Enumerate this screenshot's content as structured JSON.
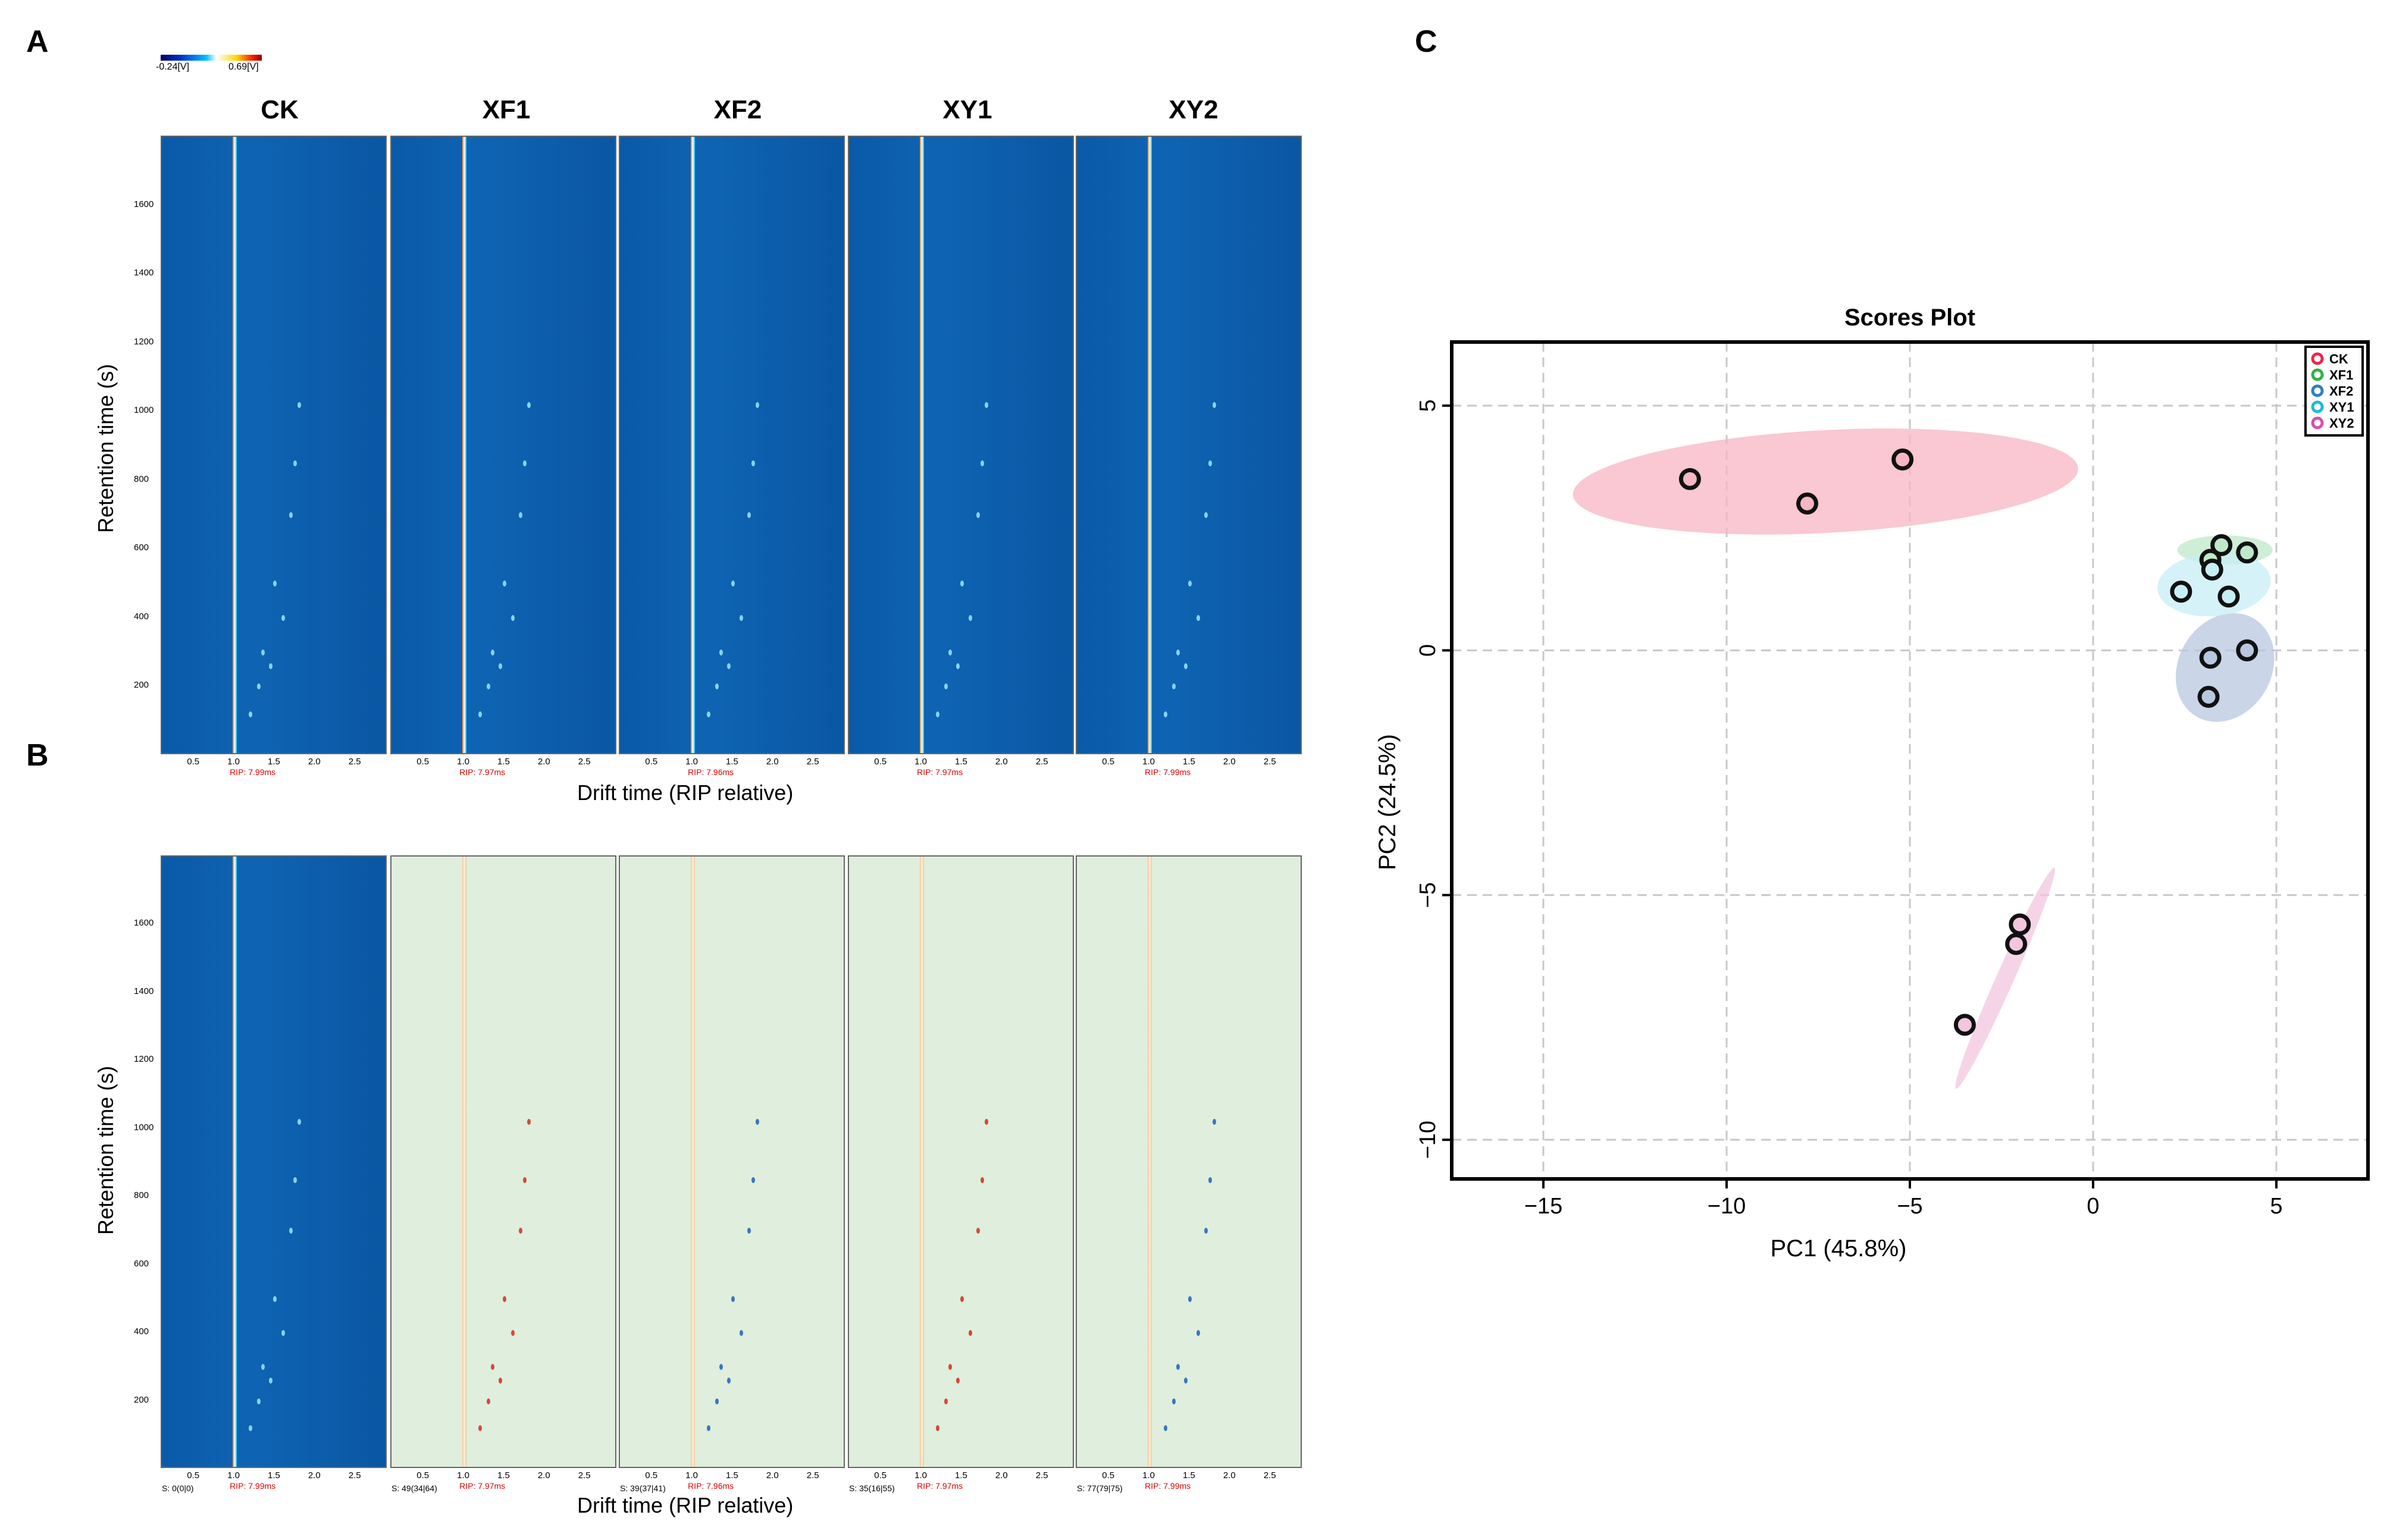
{
  "panel_labels": {
    "a": "A",
    "b": "B",
    "c": "C"
  },
  "colorbar": {
    "min_label": "-0.24[V]",
    "max_label": "0.69[V]"
  },
  "samples": [
    "CK",
    "XF1",
    "XF2",
    "XY1",
    "XY2"
  ],
  "heatmap_axes": {
    "ylabel": "Retention time (s)",
    "xlabel": "Drift time (RIP relative)",
    "y_ticks": [
      "1600",
      "1400",
      "1200",
      "1000",
      "800",
      "600",
      "400",
      "200"
    ],
    "x_ticks": [
      "0.5",
      "1.0",
      "1.5",
      "2.0",
      "2.5"
    ]
  },
  "rip_labels_top": [
    "RIP: 7.99ms",
    "RIP: 7.97ms",
    "RIP: 7.96ms",
    "RIP: 7.97ms",
    "RIP: 7.99ms"
  ],
  "rip_labels_bottom": [
    "RIP: 7.99ms",
    "RIP: 7.97ms",
    "RIP: 7.96ms",
    "RIP: 7.97ms",
    "RIP: 7.99ms"
  ],
  "s_labels": [
    "S: 0(0|0)",
    "S: 49(34|64)",
    "S: 39(37|41)",
    "S: 35(16|55)",
    "S: 77(79|75)"
  ],
  "colors": {
    "CK": "#e8294b",
    "XF1": "#2db34a",
    "XF2": "#2f7fbf",
    "XY1": "#20b8d6",
    "XY2": "#d94ea8"
  },
  "chart_data": [
    {
      "type": "heatmap",
      "title": "",
      "xlabel": "Drift time (RIP relative)",
      "ylabel": "Retention time (s)",
      "samples": [
        "CK",
        "XF1",
        "XF2",
        "XY1",
        "XY2"
      ],
      "x_ticks": [
        0.5,
        1.0,
        1.5,
        2.0,
        2.5
      ],
      "y_ticks": [
        200,
        400,
        600,
        800,
        1000,
        1200,
        1400,
        1600
      ],
      "colorbar": {
        "min": -0.24,
        "max": 0.69,
        "unit": "V"
      }
    },
    {
      "type": "heatmap",
      "title": "",
      "xlabel": "Drift time (RIP relative)",
      "ylabel": "Retention time (s)",
      "samples": [
        "CK",
        "XF1",
        "XF2",
        "XY1",
        "XY2"
      ],
      "x_ticks": [
        0.5,
        1.0,
        1.5,
        2.0,
        2.5
      ],
      "y_ticks": [
        200,
        400,
        600,
        800,
        1000,
        1200,
        1400,
        1600
      ],
      "s_labels": [
        "S: 0(0|0)",
        "S: 49(34|64)",
        "S: 39(37|41)",
        "S: 35(16|55)",
        "S: 77(79|75)"
      ]
    },
    {
      "type": "scatter",
      "title": "Scores Plot",
      "xlabel": "PC1 (45.8%)",
      "ylabel": "PC2 (24.5%)",
      "xlim": [
        -17.5,
        7.5
      ],
      "ylim": [
        -10.8,
        6.3
      ],
      "x_ticks": [
        -15,
        -10,
        -5,
        0,
        5
      ],
      "y_ticks": [
        5,
        0,
        -5,
        -10
      ],
      "x_tick_labels": [
        "−15",
        "−10",
        "−5",
        "0",
        "5"
      ],
      "y_tick_labels": [
        "5",
        "0",
        "−5",
        "−10"
      ],
      "grid": true,
      "legend": "top-right",
      "series": [
        {
          "name": "CK",
          "color": "#e8294b",
          "fill": "#f7b6c3",
          "points": [
            [
              -11.0,
              3.5
            ],
            [
              -7.8,
              3.0
            ],
            [
              -5.2,
              3.9
            ]
          ],
          "ellipse": {
            "cx": -7.3,
            "cy": 3.45,
            "rx": 6.9,
            "ry": 1.05,
            "angle_deg": 3
          }
        },
        {
          "name": "XF1",
          "color": "#2db34a",
          "fill": "#bfe8c8",
          "points": [
            [
              3.5,
              2.15
            ],
            [
              4.2,
              2.0
            ],
            [
              3.2,
              1.85
            ]
          ],
          "ellipse": {
            "cx": 3.6,
            "cy": 2.05,
            "rx": 1.3,
            "ry": 0.3,
            "angle_deg": 0
          }
        },
        {
          "name": "XF2",
          "color": "#2f7fbf",
          "fill": "#b8c7e0",
          "points": [
            [
              4.2,
              0.0
            ],
            [
              3.2,
              -0.15
            ],
            [
              3.15,
              -0.95
            ]
          ],
          "ellipse": {
            "cx": 3.6,
            "cy": -0.35,
            "rx": 1.55,
            "ry": 0.95,
            "angle_deg": 60
          }
        },
        {
          "name": "XY1",
          "color": "#20b8d6",
          "fill": "#c7eef5",
          "points": [
            [
              2.4,
              1.2
            ],
            [
              3.25,
              1.65
            ],
            [
              3.7,
              1.1
            ]
          ],
          "ellipse": {
            "cx": 3.3,
            "cy": 1.35,
            "rx": 1.55,
            "ry": 0.65,
            "angle_deg": 5
          }
        },
        {
          "name": "XY2",
          "color": "#d94ea8",
          "fill": "#f3c5df",
          "points": [
            [
              -2.0,
              -5.6
            ],
            [
              -2.1,
              -6.0
            ],
            [
              -3.5,
              -7.65
            ]
          ],
          "ellipse": {
            "cx": -2.4,
            "cy": -6.7,
            "rx": 3.3,
            "ry": 0.18,
            "angle_deg": 66
          }
        }
      ]
    }
  ]
}
